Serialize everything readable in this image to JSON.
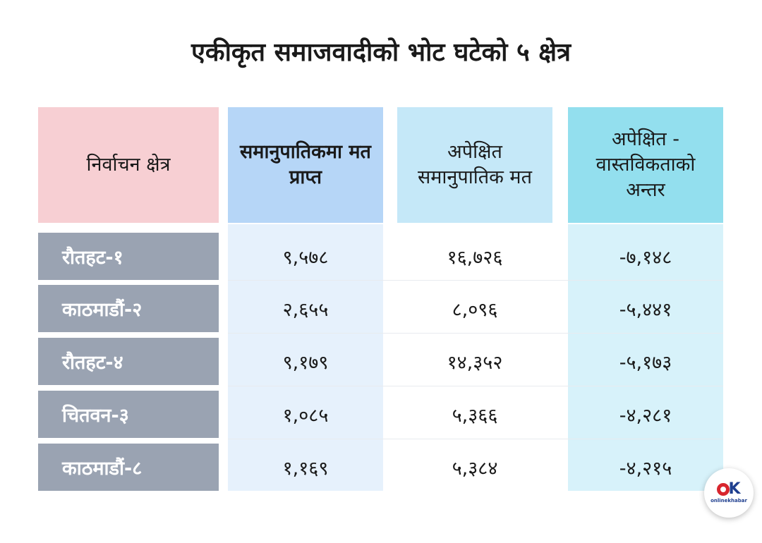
{
  "title": "एकीकृत समाजवादीको भोट घटेको ५ क्षेत्र",
  "headers": [
    "निर्वाचन क्षेत्र",
    "समानुपातिकमा मत प्राप्त",
    "अपेक्षित समानुपातिक मत",
    "अपेक्षित - वास्तविकताको अन्तर"
  ],
  "rows": [
    {
      "constituency": "रौतहट-१",
      "received": "९,५७८",
      "expected": "१६,७२६",
      "difference": "-७,१४८"
    },
    {
      "constituency": "काठमाडौं-२",
      "received": "२,६५५",
      "expected": "८,०९६",
      "difference": "-५,४४१"
    },
    {
      "constituency": "रौतहट-४",
      "received": "९,१७९",
      "expected": "१४,३५२",
      "difference": "-५,१७३"
    },
    {
      "constituency": "चितवन-३",
      "received": "१,०८५",
      "expected": "५,३६६",
      "difference": "-४,२८१"
    },
    {
      "constituency": "काठमाडौं-८",
      "received": "१,१६९",
      "expected": "५,३८४",
      "difference": "-४,२१५"
    }
  ],
  "logo": {
    "text": "onlinekhabar",
    "mark_letter": "K"
  },
  "colors": {
    "header_constituency": "#f7cfd3",
    "header_received": "#b6d6f7",
    "header_expected": "#c5e8f8",
    "header_difference": "#93dfee",
    "row_label_bg": "#9aa3b2",
    "logo_red": "#d8262e",
    "logo_blue": "#1f3f8f"
  }
}
